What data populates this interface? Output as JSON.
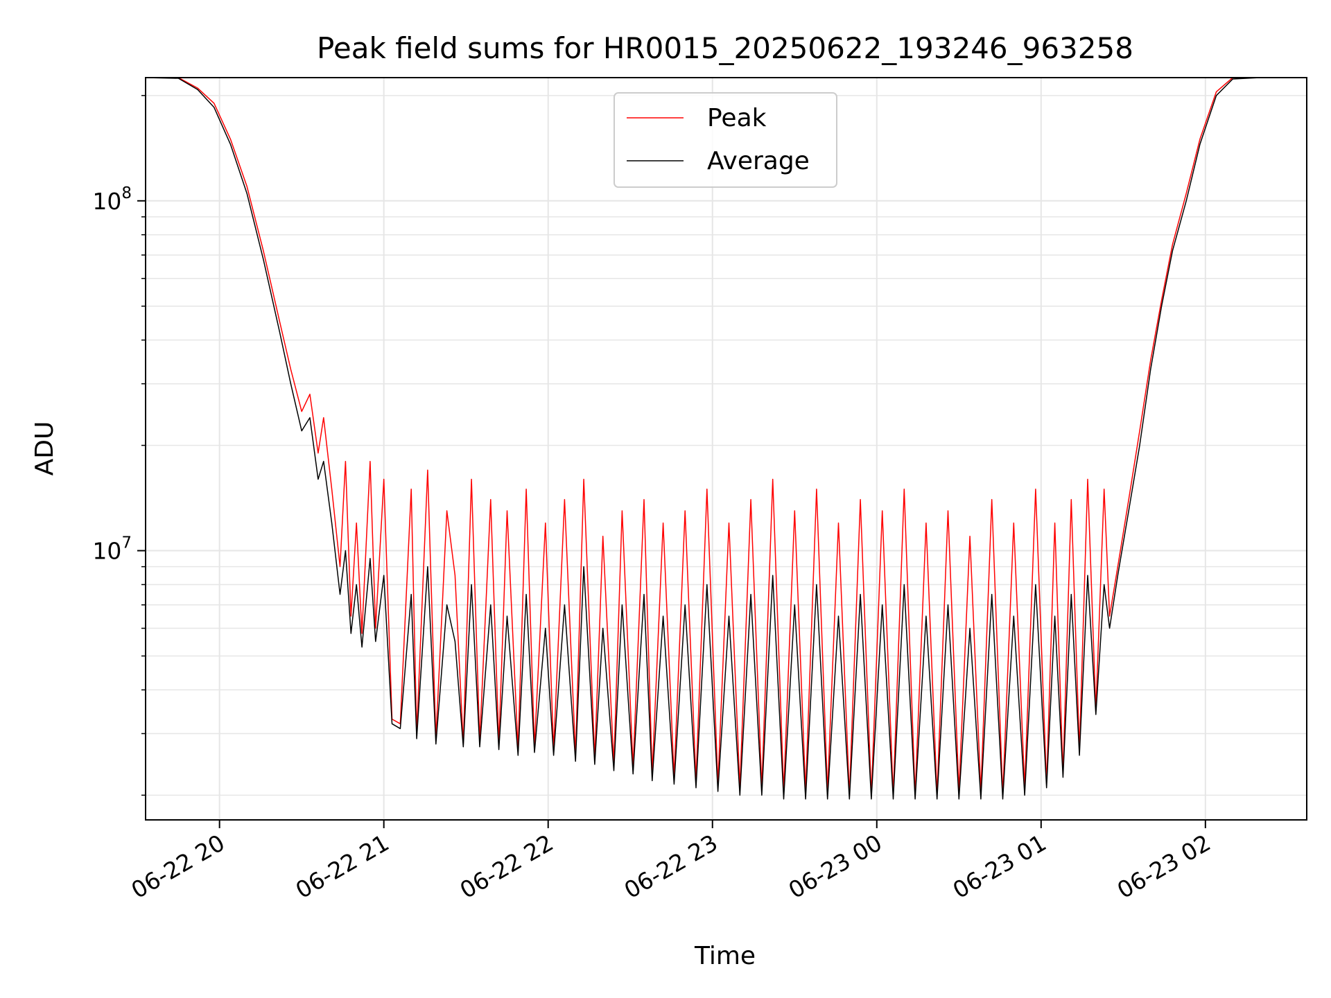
{
  "chart_data": {
    "type": "line",
    "title": "Peak field sums for HR0015_20250622_193246_963258",
    "xlabel": "Time",
    "ylabel": "ADU",
    "y_scale": "log",
    "ylim": [
      1700000,
      225000000
    ],
    "xlim": [
      "2025-06-22T19:33",
      "2025-06-23T02:37"
    ],
    "x_ticks": [
      "2025-06-22T20:00",
      "2025-06-22T21:00",
      "2025-06-22T22:00",
      "2025-06-22T23:00",
      "2025-06-23T00:00",
      "2025-06-23T01:00",
      "2025-06-23T02:00"
    ],
    "x_tick_labels": [
      "06-22 20",
      "06-22 21",
      "06-22 22",
      "06-22 23",
      "06-23 00",
      "06-23 01",
      "06-23 02"
    ],
    "y_major_ticks": [
      10000000,
      100000000
    ],
    "y_tick_labels": [
      {
        "base": "10",
        "exp": "7"
      },
      {
        "base": "10",
        "exp": "8"
      }
    ],
    "grid": "major and minor",
    "legend_position": "upper center",
    "series": [
      {
        "name": "Peak",
        "color": "#ff0000",
        "points": [
          [
            "2025-06-22T19:33",
            230000000
          ],
          [
            "2025-06-22T19:45",
            225000000
          ],
          [
            "2025-06-22T19:52",
            210000000
          ],
          [
            "2025-06-22T19:58",
            190000000
          ],
          [
            "2025-06-22T20:04",
            150000000
          ],
          [
            "2025-06-22T20:10",
            110000000
          ],
          [
            "2025-06-22T20:16",
            72000000
          ],
          [
            "2025-06-22T20:22",
            45000000
          ],
          [
            "2025-06-22T20:26",
            33000000
          ],
          [
            "2025-06-22T20:30",
            25000000
          ],
          [
            "2025-06-22T20:33",
            28000000
          ],
          [
            "2025-06-22T20:36",
            19000000
          ],
          [
            "2025-06-22T20:38",
            24000000
          ],
          [
            "2025-06-22T20:41",
            15000000
          ],
          [
            "2025-06-22T20:44",
            9000000
          ],
          [
            "2025-06-22T20:46",
            18000000
          ],
          [
            "2025-06-22T20:48",
            6500000
          ],
          [
            "2025-06-22T20:50",
            12000000
          ],
          [
            "2025-06-22T20:52",
            5800000
          ],
          [
            "2025-06-22T20:55",
            18000000
          ],
          [
            "2025-06-22T20:57",
            6000000
          ],
          [
            "2025-06-22T21:00",
            16000000
          ],
          [
            "2025-06-22T21:03",
            3300000
          ],
          [
            "2025-06-22T21:06",
            3200000
          ],
          [
            "2025-06-22T21:10",
            15000000
          ],
          [
            "2025-06-22T21:12",
            3000000
          ],
          [
            "2025-06-22T21:16",
            17000000
          ],
          [
            "2025-06-22T21:19",
            2900000
          ],
          [
            "2025-06-22T21:23",
            13000000
          ],
          [
            "2025-06-22T21:26",
            8500000
          ],
          [
            "2025-06-22T21:29",
            2800000
          ],
          [
            "2025-06-22T21:32",
            16000000
          ],
          [
            "2025-06-22T21:35",
            2850000
          ],
          [
            "2025-06-22T21:39",
            14000000
          ],
          [
            "2025-06-22T21:42",
            2800000
          ],
          [
            "2025-06-22T21:45",
            13000000
          ],
          [
            "2025-06-22T21:49",
            2700000
          ],
          [
            "2025-06-22T21:52",
            15000000
          ],
          [
            "2025-06-22T21:55",
            2750000
          ],
          [
            "2025-06-22T21:59",
            12000000
          ],
          [
            "2025-06-22T22:02",
            2700000
          ],
          [
            "2025-06-22T22:06",
            14000000
          ],
          [
            "2025-06-22T22:10",
            2600000
          ],
          [
            "2025-06-22T22:13",
            16000000
          ],
          [
            "2025-06-22T22:17",
            2550000
          ],
          [
            "2025-06-22T22:20",
            11000000
          ],
          [
            "2025-06-22T22:24",
            2450000
          ],
          [
            "2025-06-22T22:27",
            13000000
          ],
          [
            "2025-06-22T22:31",
            2400000
          ],
          [
            "2025-06-22T22:35",
            14000000
          ],
          [
            "2025-06-22T22:38",
            2300000
          ],
          [
            "2025-06-22T22:42",
            12000000
          ],
          [
            "2025-06-22T22:46",
            2250000
          ],
          [
            "2025-06-22T22:50",
            13000000
          ],
          [
            "2025-06-22T22:54",
            2200000
          ],
          [
            "2025-06-22T22:58",
            15000000
          ],
          [
            "2025-06-22T23:02",
            2150000
          ],
          [
            "2025-06-22T23:06",
            12000000
          ],
          [
            "2025-06-22T23:10",
            2100000
          ],
          [
            "2025-06-22T23:14",
            14000000
          ],
          [
            "2025-06-22T23:18",
            2100000
          ],
          [
            "2025-06-22T23:22",
            16000000
          ],
          [
            "2025-06-22T23:26",
            2050000
          ],
          [
            "2025-06-22T23:30",
            13000000
          ],
          [
            "2025-06-22T23:34",
            2050000
          ],
          [
            "2025-06-22T23:38",
            15000000
          ],
          [
            "2025-06-22T23:42",
            2050000
          ],
          [
            "2025-06-22T23:46",
            12000000
          ],
          [
            "2025-06-22T23:50",
            2000000
          ],
          [
            "2025-06-22T23:54",
            14000000
          ],
          [
            "2025-06-22T23:58",
            2000000
          ],
          [
            "2025-06-23T00:02",
            13000000
          ],
          [
            "2025-06-23T00:06",
            2000000
          ],
          [
            "2025-06-23T00:10",
            15000000
          ],
          [
            "2025-06-23T00:14",
            2000000
          ],
          [
            "2025-06-23T00:18",
            12000000
          ],
          [
            "2025-06-23T00:22",
            2000000
          ],
          [
            "2025-06-23T00:26",
            13000000
          ],
          [
            "2025-06-23T00:30",
            2050000
          ],
          [
            "2025-06-23T00:34",
            11000000
          ],
          [
            "2025-06-23T00:38",
            2050000
          ],
          [
            "2025-06-23T00:42",
            14000000
          ],
          [
            "2025-06-23T00:46",
            2000000
          ],
          [
            "2025-06-23T00:50",
            12000000
          ],
          [
            "2025-06-23T00:54",
            2100000
          ],
          [
            "2025-06-23T00:58",
            15000000
          ],
          [
            "2025-06-23T01:02",
            2150000
          ],
          [
            "2025-06-23T01:05",
            12000000
          ],
          [
            "2025-06-23T01:08",
            2300000
          ],
          [
            "2025-06-23T01:11",
            14000000
          ],
          [
            "2025-06-23T01:14",
            2700000
          ],
          [
            "2025-06-23T01:17",
            16000000
          ],
          [
            "2025-06-23T01:20",
            3500000
          ],
          [
            "2025-06-23T01:23",
            15000000
          ],
          [
            "2025-06-23T01:25",
            6500000
          ],
          [
            "2025-06-23T01:28",
            9000000
          ],
          [
            "2025-06-23T01:32",
            14000000
          ],
          [
            "2025-06-23T01:36",
            22000000
          ],
          [
            "2025-06-23T01:40",
            35000000
          ],
          [
            "2025-06-23T01:44",
            52000000
          ],
          [
            "2025-06-23T01:48",
            75000000
          ],
          [
            "2025-06-23T01:53",
            105000000
          ],
          [
            "2025-06-23T01:58",
            150000000
          ],
          [
            "2025-06-23T02:04",
            205000000
          ],
          [
            "2025-06-23T02:10",
            225000000
          ],
          [
            "2025-06-23T02:20",
            232000000
          ]
        ]
      },
      {
        "name": "Average",
        "color": "#000000",
        "points": [
          [
            "2025-06-22T19:33",
            230000000
          ],
          [
            "2025-06-22T19:45",
            224000000
          ],
          [
            "2025-06-22T19:52",
            208000000
          ],
          [
            "2025-06-22T19:58",
            185000000
          ],
          [
            "2025-06-22T20:04",
            145000000
          ],
          [
            "2025-06-22T20:10",
            105000000
          ],
          [
            "2025-06-22T20:16",
            68000000
          ],
          [
            "2025-06-22T20:22",
            42000000
          ],
          [
            "2025-06-22T20:26",
            30000000
          ],
          [
            "2025-06-22T20:30",
            22000000
          ],
          [
            "2025-06-22T20:33",
            24000000
          ],
          [
            "2025-06-22T20:36",
            16000000
          ],
          [
            "2025-06-22T20:38",
            18000000
          ],
          [
            "2025-06-22T20:41",
            12000000
          ],
          [
            "2025-06-22T20:44",
            7500000
          ],
          [
            "2025-06-22T20:46",
            10000000
          ],
          [
            "2025-06-22T20:48",
            5800000
          ],
          [
            "2025-06-22T20:50",
            8000000
          ],
          [
            "2025-06-22T20:52",
            5300000
          ],
          [
            "2025-06-22T20:55",
            9500000
          ],
          [
            "2025-06-22T20:57",
            5500000
          ],
          [
            "2025-06-22T21:00",
            8500000
          ],
          [
            "2025-06-22T21:03",
            3200000
          ],
          [
            "2025-06-22T21:06",
            3100000
          ],
          [
            "2025-06-22T21:10",
            7500000
          ],
          [
            "2025-06-22T21:12",
            2900000
          ],
          [
            "2025-06-22T21:16",
            9000000
          ],
          [
            "2025-06-22T21:19",
            2800000
          ],
          [
            "2025-06-22T21:23",
            7000000
          ],
          [
            "2025-06-22T21:26",
            5500000
          ],
          [
            "2025-06-22T21:29",
            2750000
          ],
          [
            "2025-06-22T21:32",
            8000000
          ],
          [
            "2025-06-22T21:35",
            2750000
          ],
          [
            "2025-06-22T21:39",
            7000000
          ],
          [
            "2025-06-22T21:42",
            2700000
          ],
          [
            "2025-06-22T21:45",
            6500000
          ],
          [
            "2025-06-22T21:49",
            2600000
          ],
          [
            "2025-06-22T21:52",
            7500000
          ],
          [
            "2025-06-22T21:55",
            2650000
          ],
          [
            "2025-06-22T21:59",
            6000000
          ],
          [
            "2025-06-22T22:02",
            2600000
          ],
          [
            "2025-06-22T22:06",
            7000000
          ],
          [
            "2025-06-22T22:10",
            2500000
          ],
          [
            "2025-06-22T22:13",
            9000000
          ],
          [
            "2025-06-22T22:17",
            2450000
          ],
          [
            "2025-06-22T22:20",
            6000000
          ],
          [
            "2025-06-22T22:24",
            2350000
          ],
          [
            "2025-06-22T22:27",
            7000000
          ],
          [
            "2025-06-22T22:31",
            2300000
          ],
          [
            "2025-06-22T22:35",
            7500000
          ],
          [
            "2025-06-22T22:38",
            2200000
          ],
          [
            "2025-06-22T22:42",
            6500000
          ],
          [
            "2025-06-22T22:46",
            2150000
          ],
          [
            "2025-06-22T22:50",
            7000000
          ],
          [
            "2025-06-22T22:54",
            2100000
          ],
          [
            "2025-06-22T22:58",
            8000000
          ],
          [
            "2025-06-22T23:02",
            2050000
          ],
          [
            "2025-06-22T23:06",
            6500000
          ],
          [
            "2025-06-22T23:10",
            2000000
          ],
          [
            "2025-06-22T23:14",
            7500000
          ],
          [
            "2025-06-22T23:18",
            2000000
          ],
          [
            "2025-06-22T23:22",
            8500000
          ],
          [
            "2025-06-22T23:26",
            1950000
          ],
          [
            "2025-06-22T23:30",
            7000000
          ],
          [
            "2025-06-22T23:34",
            1950000
          ],
          [
            "2025-06-22T23:38",
            8000000
          ],
          [
            "2025-06-22T23:42",
            1950000
          ],
          [
            "2025-06-22T23:46",
            6500000
          ],
          [
            "2025-06-22T23:50",
            1950000
          ],
          [
            "2025-06-22T23:54",
            7500000
          ],
          [
            "2025-06-22T23:58",
            1950000
          ],
          [
            "2025-06-23T00:02",
            7000000
          ],
          [
            "2025-06-23T00:06",
            1950000
          ],
          [
            "2025-06-23T00:10",
            8000000
          ],
          [
            "2025-06-23T00:14",
            1950000
          ],
          [
            "2025-06-23T00:18",
            6500000
          ],
          [
            "2025-06-23T00:22",
            1950000
          ],
          [
            "2025-06-23T00:26",
            7000000
          ],
          [
            "2025-06-23T00:30",
            1950000
          ],
          [
            "2025-06-23T00:34",
            6000000
          ],
          [
            "2025-06-23T00:38",
            1950000
          ],
          [
            "2025-06-23T00:42",
            7500000
          ],
          [
            "2025-06-23T00:46",
            1950000
          ],
          [
            "2025-06-23T00:50",
            6500000
          ],
          [
            "2025-06-23T00:54",
            2000000
          ],
          [
            "2025-06-23T00:58",
            8000000
          ],
          [
            "2025-06-23T01:02",
            2100000
          ],
          [
            "2025-06-23T01:05",
            6500000
          ],
          [
            "2025-06-23T01:08",
            2250000
          ],
          [
            "2025-06-23T01:11",
            7500000
          ],
          [
            "2025-06-23T01:14",
            2600000
          ],
          [
            "2025-06-23T01:17",
            8500000
          ],
          [
            "2025-06-23T01:20",
            3400000
          ],
          [
            "2025-06-23T01:23",
            8000000
          ],
          [
            "2025-06-23T01:25",
            6000000
          ],
          [
            "2025-06-23T01:28",
            8500000
          ],
          [
            "2025-06-23T01:32",
            13000000
          ],
          [
            "2025-06-23T01:36",
            20000000
          ],
          [
            "2025-06-23T01:40",
            33000000
          ],
          [
            "2025-06-23T01:44",
            50000000
          ],
          [
            "2025-06-23T01:48",
            72000000
          ],
          [
            "2025-06-23T01:53",
            100000000
          ],
          [
            "2025-06-23T01:58",
            145000000
          ],
          [
            "2025-06-23T02:04",
            200000000
          ],
          [
            "2025-06-23T02:10",
            223000000
          ],
          [
            "2025-06-23T02:20",
            231000000
          ]
        ]
      }
    ]
  }
}
